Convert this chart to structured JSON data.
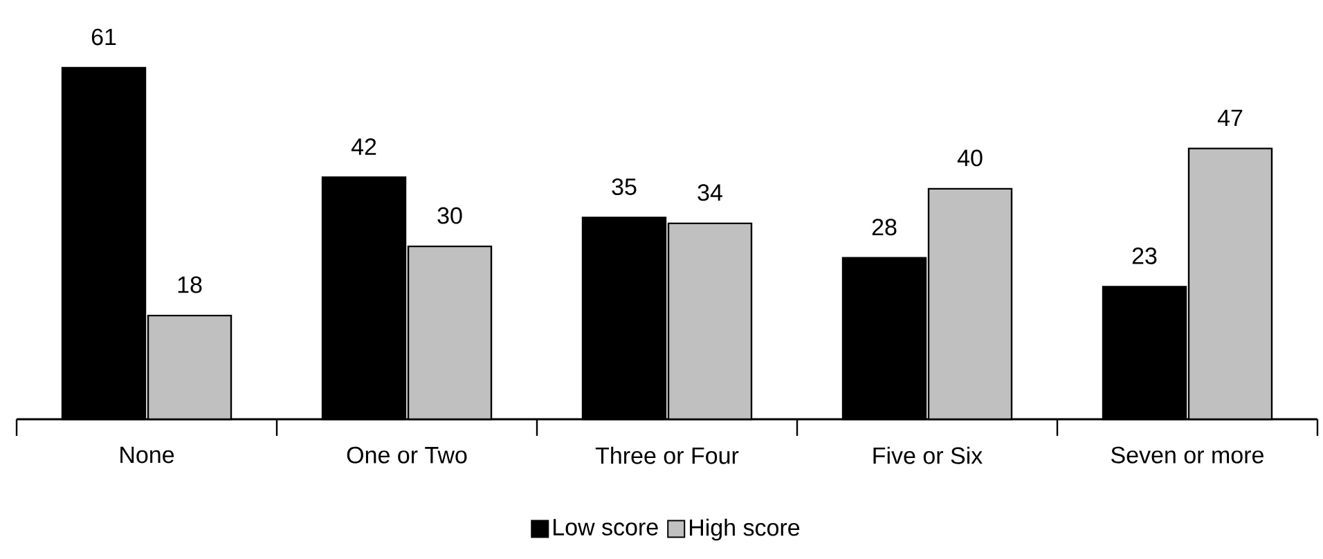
{
  "chart_data": {
    "type": "bar",
    "categories": [
      "None",
      "One or Two",
      "Three or Four",
      "Five or Six",
      "Seven or more"
    ],
    "series": [
      {
        "name": "Low score",
        "color": "#000000",
        "values": [
          61,
          42,
          35,
          28,
          23
        ]
      },
      {
        "name": "High score",
        "color": "#c0c0c0",
        "values": [
          18,
          30,
          34,
          40,
          47
        ]
      }
    ],
    "data_labels": true,
    "legend": "bottom"
  }
}
